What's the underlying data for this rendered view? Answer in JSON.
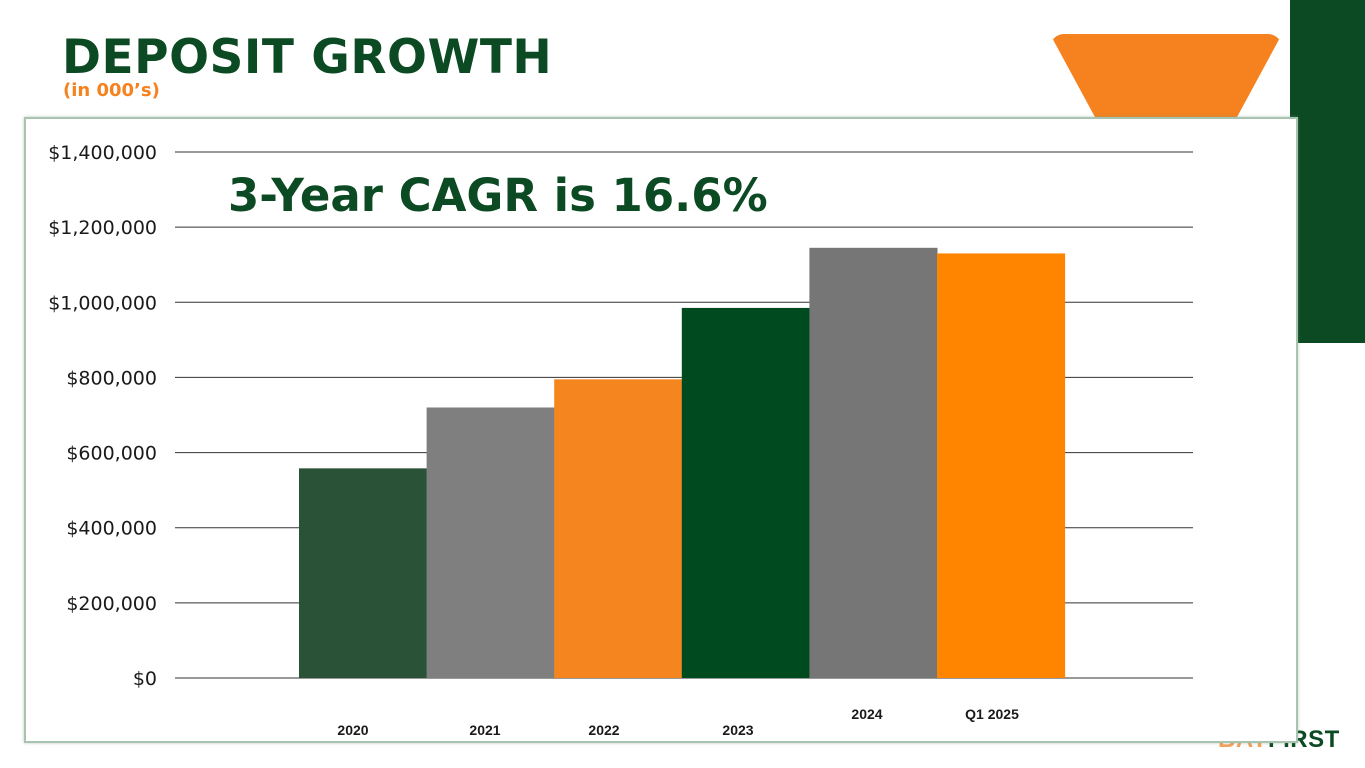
{
  "page": {
    "title": "DEPOSIT GROWTH",
    "subtitle": "(in 000’s)",
    "brand": {
      "part1": "BAY",
      "part2": "FIRST"
    }
  },
  "colors": {
    "dark_green": "#2a5237",
    "gray": "#7f7f7f",
    "orange": "#f5861f",
    "green": "#004a1f",
    "gray2": "#767676",
    "orange2": "#ff8400"
  },
  "chart_data": {
    "type": "bar",
    "title": "",
    "annotation": "3-Year CAGR is 16.6%",
    "categories": [
      "2020",
      "2021",
      "2022",
      "2023",
      "2024",
      "Q1 2025"
    ],
    "values": [
      558000,
      720000,
      795000,
      985000,
      1145000,
      1130000
    ],
    "bar_colors": [
      "#2a5237",
      "#7f7f7f",
      "#f5861f",
      "#004a1f",
      "#767676",
      "#ff8400"
    ],
    "ylim": [
      0,
      1400000
    ],
    "yticks": [
      0,
      200000,
      400000,
      600000,
      800000,
      1000000,
      1200000,
      1400000
    ],
    "ytick_labels": [
      "$0",
      "$200,000",
      "$400,000",
      "$600,000",
      "$800,000",
      "$1,000,000",
      "$1,200,000",
      "$1,400,000"
    ],
    "xlabel": "",
    "ylabel": "",
    "grid": true,
    "legend": "none"
  }
}
